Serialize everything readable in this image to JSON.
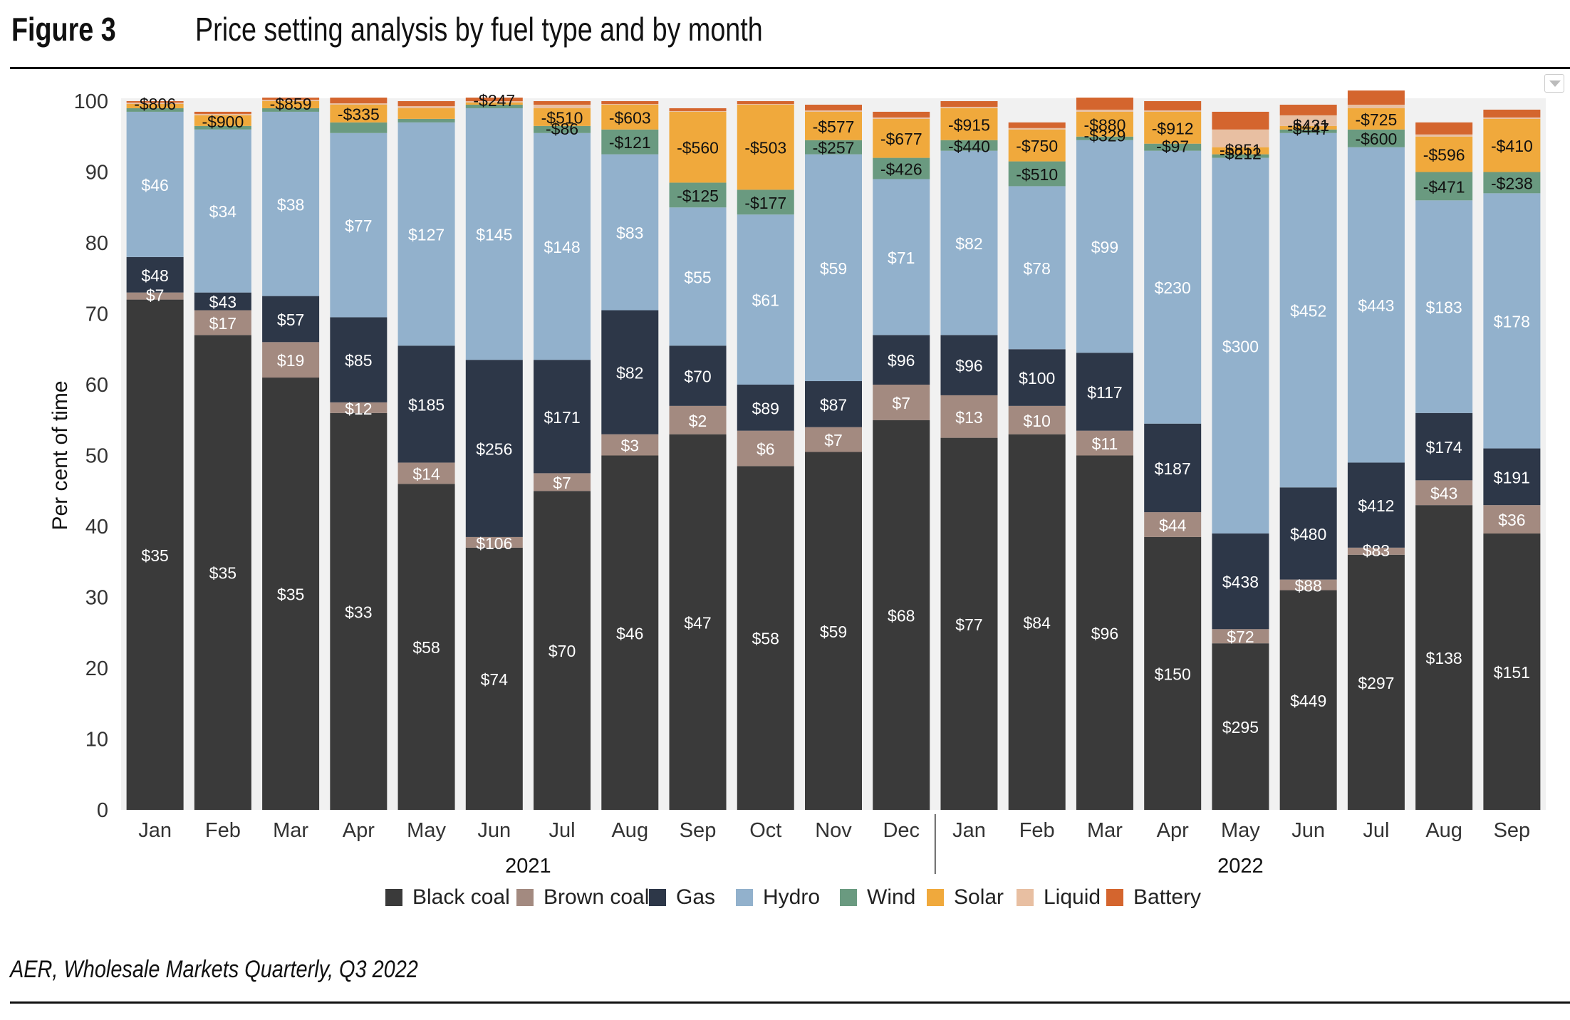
{
  "header": {
    "figure_label": "Figure  3",
    "title": "Price setting analysis by fuel type and by month"
  },
  "source": "AER, Wholesale Markets Quarterly, Q3 2022",
  "menu_icon": "chevron-down-icon",
  "chart_data": {
    "type": "bar",
    "stacked": true,
    "ylabel": "Per cent of time",
    "ylim": [
      0,
      100
    ],
    "yticks": [
      0,
      10,
      20,
      30,
      40,
      50,
      60,
      70,
      80,
      90,
      100
    ],
    "grid": false,
    "legend_position": "bottom",
    "categories": [
      "Jan",
      "Feb",
      "Mar",
      "Apr",
      "May",
      "Jun",
      "Jul",
      "Aug",
      "Sep",
      "Oct",
      "Nov",
      "Dec",
      "Jan",
      "Feb",
      "Mar",
      "Apr",
      "May",
      "Jun",
      "Jul",
      "Aug",
      "Sep"
    ],
    "year_groups": [
      {
        "label": "2021",
        "start": 0,
        "end": 11
      },
      {
        "label": "2022",
        "start": 12,
        "end": 20
      }
    ],
    "series": [
      {
        "name": "Black coal",
        "color": "#3a3a3a",
        "label_color": "#ffffff",
        "values": [
          72,
          67,
          61,
          56,
          46,
          37,
          45,
          50,
          53,
          48.5,
          50.5,
          55,
          52.5,
          53,
          50,
          38.5,
          23.5,
          31,
          36,
          43,
          39
        ],
        "labels": [
          "$35",
          "$35",
          "$35",
          "$33",
          "$58",
          "$74",
          "$70",
          "$46",
          "$47",
          "$58",
          "$59",
          "$68",
          "$77",
          "$84",
          "$96",
          "$150",
          "$295",
          "$449",
          "$297",
          "$138",
          "$151"
        ]
      },
      {
        "name": "Brown coal",
        "color": "#a38a80",
        "label_color": "#ffffff",
        "values": [
          1,
          3.5,
          5,
          1.5,
          3,
          1.5,
          2.5,
          3,
          4,
          5,
          3.5,
          5,
          6,
          4,
          3.5,
          3.5,
          2,
          1.5,
          1,
          3.5,
          4
        ],
        "labels": [
          "$7",
          "$17",
          "$19",
          "$12",
          "$14",
          "$106",
          "$7",
          "$3",
          "$2",
          "$6",
          "$7",
          "$7",
          "$13",
          "$10",
          "$11",
          "$44",
          "$72",
          "$88",
          "$83",
          "$43",
          "$36"
        ]
      },
      {
        "name": "Gas",
        "color": "#2d3748",
        "label_color": "#ffffff",
        "values": [
          5,
          2.5,
          6.5,
          12,
          16.5,
          25,
          16,
          17.5,
          8.5,
          6.5,
          6.5,
          7,
          8.5,
          8,
          11,
          12.5,
          13.5,
          13,
          12,
          9.5,
          8
        ],
        "labels": [
          "$48",
          "$43",
          "$57",
          "$85",
          "$185",
          "$256",
          "$171",
          "$82",
          "$70",
          "$89",
          "$87",
          "$96",
          "$96",
          "$100",
          "$117",
          "$187",
          "$438",
          "$480",
          "$412",
          "$174",
          "$191"
        ]
      },
      {
        "name": "Hydro",
        "color": "#92b1cc",
        "label_color": "#ffffff",
        "values": [
          20.5,
          23,
          26,
          26,
          31.5,
          35.5,
          32,
          22,
          19.5,
          24,
          32,
          22,
          26,
          23,
          30,
          38.5,
          53,
          50,
          44.5,
          30,
          36
        ],
        "labels": [
          "$46",
          "$34",
          "$38",
          "$77",
          "$127",
          "$145",
          "$148",
          "$83",
          "$55",
          "$61",
          "$59",
          "$71",
          "$82",
          "$78",
          "$99",
          "$230",
          "$300",
          "$452",
          "$443",
          "$183",
          "$178"
        ]
      },
      {
        "name": "Wind",
        "color": "#6a9a80",
        "label_color": "#111111",
        "values": [
          0.5,
          0.5,
          0.5,
          1.5,
          0.5,
          0.5,
          1,
          3.5,
          3.5,
          3.5,
          2,
          3,
          1.5,
          3.5,
          0.5,
          1,
          0.5,
          0.5,
          2.5,
          4,
          3
        ],
        "labels": [
          "",
          "",
          "",
          "",
          "",
          "",
          "-$86",
          "-$121",
          "-$125",
          "-$177",
          "-$257",
          "-$426",
          "-$440",
          "-$510",
          "-$329",
          "-$97",
          "-$212",
          "-$447",
          "-$600",
          "-$471",
          "-$238"
        ]
      },
      {
        "name": "Solar",
        "color": "#f0a93c",
        "label_color": "#111111",
        "values": [
          0.6,
          1.5,
          1,
          2.5,
          1.5,
          0.3,
          2.5,
          3.5,
          10,
          12,
          4,
          5.5,
          4.5,
          4.5,
          3.5,
          4.5,
          1,
          0.5,
          3,
          5,
          7.5
        ],
        "labels": [
          "-$806",
          "-$900",
          "-$859",
          "-$335",
          "",
          "-$247",
          "-$510",
          "-$603",
          "-$560",
          "-$503",
          "-$577",
          "-$677",
          "-$915",
          "-$750",
          "-$880",
          "-$912",
          "-$851",
          "-$431",
          "-$725",
          "-$596",
          "-$410"
        ]
      },
      {
        "name": "Liquid",
        "color": "#e8bfa2",
        "label_color": "#111111",
        "values": [
          0.2,
          0.2,
          0.2,
          0.2,
          0.3,
          0.2,
          0.5,
          0.1,
          0.1,
          0.1,
          0.2,
          0.2,
          0.2,
          0.2,
          0.3,
          0.2,
          2.5,
          1.5,
          0.5,
          0.3,
          0.2
        ],
        "labels": [
          "",
          "",
          "",
          "",
          "",
          "",
          "",
          "",
          "",
          "",
          "",
          "",
          "",
          "",
          "",
          "",
          "",
          "",
          "",
          "",
          ""
        ]
      },
      {
        "name": "Battery",
        "color": "#d4652e",
        "label_color": "#111111",
        "values": [
          0.2,
          0.3,
          0.3,
          0.8,
          0.7,
          0.5,
          0.5,
          0.4,
          0.4,
          0.4,
          0.8,
          0.8,
          0.8,
          0.8,
          1.7,
          1.3,
          2.5,
          1.5,
          2,
          1.7,
          1.1
        ],
        "labels": [
          "",
          "",
          "",
          "",
          "",
          "",
          "",
          "",
          "",
          "",
          "",
          "",
          "",
          "",
          "",
          "",
          "",
          "",
          "",
          "",
          ""
        ]
      }
    ]
  }
}
